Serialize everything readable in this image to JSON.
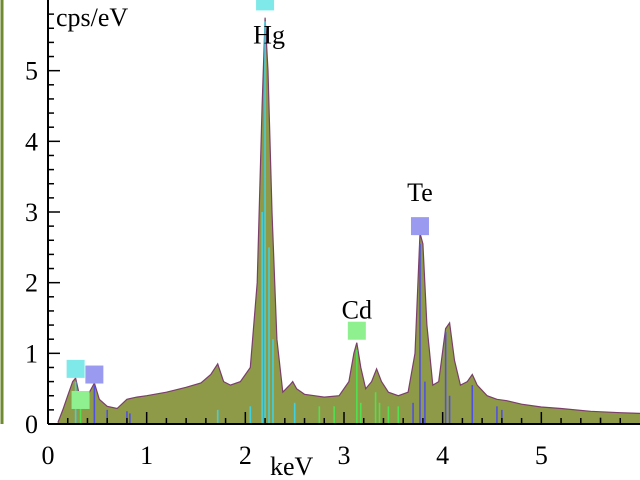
{
  "chart_data": {
    "type": "area",
    "xlabel": "keV",
    "ylabel": "cps/eV",
    "xlim": [
      0,
      6.0
    ],
    "ylim": [
      0,
      6.0
    ],
    "x_ticks": [
      "0",
      "1",
      "2",
      "3",
      "4",
      "5"
    ],
    "x_tick_values": [
      0,
      1,
      2,
      3,
      4,
      5
    ],
    "y_ticks": [
      "0",
      "1",
      "2",
      "3",
      "4",
      "5"
    ],
    "y_tick_values": [
      0,
      1,
      2,
      3,
      4,
      5
    ],
    "grid": false,
    "colors": {
      "fill": "#8f9a48",
      "outline": "#7a3f6a",
      "axis": "#000000",
      "frame_left": "#6f8a30",
      "marker_hg": "#7fe9e9",
      "marker_cd": "#8ef08e",
      "marker_te": "#9a9af0",
      "line_cyan": "#40d0e0",
      "line_green": "#50e050",
      "line_blue": "#5050e0"
    },
    "series": [
      {
        "x": [
          0.1,
          0.15,
          0.2,
          0.25,
          0.28,
          0.32,
          0.38,
          0.42,
          0.47,
          0.52,
          0.6,
          0.7,
          0.8,
          0.9,
          1.0,
          1.2,
          1.4,
          1.55,
          1.65,
          1.72,
          1.78,
          1.85,
          1.95,
          2.05,
          2.12,
          2.17,
          2.2,
          2.23,
          2.27,
          2.32,
          2.38,
          2.45,
          2.48,
          2.52,
          2.6,
          2.7,
          2.8,
          2.95,
          3.05,
          3.1,
          3.13,
          3.17,
          3.22,
          3.28,
          3.33,
          3.38,
          3.45,
          3.55,
          3.65,
          3.72,
          3.77,
          3.8,
          3.84,
          3.9,
          3.96,
          4.03,
          4.07,
          4.12,
          4.18,
          4.25,
          4.3,
          4.35,
          4.45,
          4.55,
          4.65,
          4.8,
          5.0,
          5.2,
          5.5,
          5.8,
          6.0
        ],
        "y": [
          0.02,
          0.2,
          0.4,
          0.6,
          0.65,
          0.4,
          0.3,
          0.45,
          0.58,
          0.35,
          0.25,
          0.22,
          0.35,
          0.38,
          0.4,
          0.45,
          0.52,
          0.58,
          0.7,
          0.85,
          0.6,
          0.55,
          0.6,
          0.8,
          2.0,
          4.5,
          5.75,
          5.0,
          3.0,
          1.2,
          0.45,
          0.55,
          0.6,
          0.5,
          0.42,
          0.4,
          0.38,
          0.4,
          0.6,
          1.0,
          1.15,
          0.8,
          0.5,
          0.6,
          0.78,
          0.6,
          0.45,
          0.4,
          0.45,
          1.0,
          2.7,
          2.55,
          1.4,
          0.55,
          0.6,
          1.35,
          1.43,
          0.9,
          0.55,
          0.6,
          0.7,
          0.55,
          0.4,
          0.35,
          0.33,
          0.28,
          0.24,
          0.22,
          0.18,
          0.16,
          0.15
        ]
      }
    ],
    "peak_labels": [
      {
        "text": "Hg",
        "x": 2.2,
        "y": 5.75
      },
      {
        "text": "Cd",
        "x": 3.13,
        "y": 1.15
      },
      {
        "text": "Te",
        "x": 3.77,
        "y": 2.7
      }
    ],
    "markers": [
      {
        "x": 0.28,
        "y": 0.78,
        "color": "#7fe9e9"
      },
      {
        "x": 0.33,
        "y": 0.34,
        "color": "#8ef08e"
      },
      {
        "x": 0.47,
        "y": 0.7,
        "color": "#9a9af0"
      },
      {
        "x": 2.2,
        "y": 5.98,
        "color": "#7fe9e9"
      },
      {
        "x": 3.13,
        "y": 1.32,
        "color": "#8ef08e"
      },
      {
        "x": 3.77,
        "y": 2.8,
        "color": "#9a9af0"
      }
    ],
    "lines": [
      {
        "x": 0.28,
        "h": 0.6,
        "color": "#40d0e0"
      },
      {
        "x": 0.33,
        "h": 0.3,
        "color": "#50e050"
      },
      {
        "x": 0.47,
        "h": 0.55,
        "color": "#5050e0"
      },
      {
        "x": 0.6,
        "h": 0.2,
        "color": "#5050e0"
      },
      {
        "x": 0.8,
        "h": 0.18,
        "color": "#5050e0"
      },
      {
        "x": 0.83,
        "h": 0.15,
        "color": "#5050e0"
      },
      {
        "x": 1.72,
        "h": 0.2,
        "color": "#40d0e0"
      },
      {
        "x": 2.05,
        "h": 0.25,
        "color": "#40d0e0"
      },
      {
        "x": 2.17,
        "h": 3.0,
        "color": "#40d0e0"
      },
      {
        "x": 2.2,
        "h": 5.7,
        "color": "#40d0e0"
      },
      {
        "x": 2.24,
        "h": 2.5,
        "color": "#40d0e0"
      },
      {
        "x": 2.28,
        "h": 1.2,
        "color": "#40d0e0"
      },
      {
        "x": 2.5,
        "h": 0.3,
        "color": "#40d0e0"
      },
      {
        "x": 2.75,
        "h": 0.25,
        "color": "#50e050"
      },
      {
        "x": 2.9,
        "h": 0.25,
        "color": "#50e050"
      },
      {
        "x": 3.13,
        "h": 1.05,
        "color": "#50e050"
      },
      {
        "x": 3.17,
        "h": 0.3,
        "color": "#50e050"
      },
      {
        "x": 3.32,
        "h": 0.45,
        "color": "#50e050"
      },
      {
        "x": 3.36,
        "h": 0.3,
        "color": "#50e050"
      },
      {
        "x": 3.45,
        "h": 0.25,
        "color": "#50e050"
      },
      {
        "x": 3.55,
        "h": 0.25,
        "color": "#50e050"
      },
      {
        "x": 3.7,
        "h": 0.3,
        "color": "#5050e0"
      },
      {
        "x": 3.77,
        "h": 2.55,
        "color": "#5050e0"
      },
      {
        "x": 3.82,
        "h": 0.6,
        "color": "#5050e0"
      },
      {
        "x": 4.03,
        "h": 1.3,
        "color": "#5050e0"
      },
      {
        "x": 4.07,
        "h": 0.4,
        "color": "#5050e0"
      },
      {
        "x": 4.3,
        "h": 0.55,
        "color": "#5050e0"
      },
      {
        "x": 4.55,
        "h": 0.25,
        "color": "#5050e0"
      },
      {
        "x": 4.6,
        "h": 0.2,
        "color": "#5050e0"
      },
      {
        "x": 5.6,
        "h": 0.1,
        "color": "#5050e0"
      }
    ]
  }
}
